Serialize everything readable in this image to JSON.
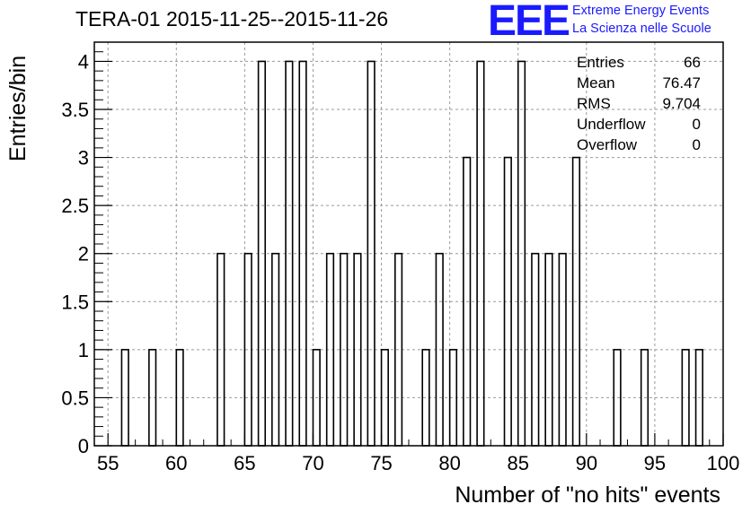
{
  "header": {
    "title": "TERA-01 2015-11-25--2015-11-26",
    "logo_text": "EEE",
    "logo_line1": "Extreme Energy Events",
    "logo_line2": "La Scienza nelle Scuole"
  },
  "stats": {
    "entries_label": "Entries",
    "entries_value": "66",
    "mean_label": "Mean",
    "mean_value": "76.47",
    "rms_label": "RMS",
    "rms_value": "9.704",
    "underflow_label": "Underflow",
    "underflow_value": "0",
    "overflow_label": "Overflow",
    "overflow_value": "0"
  },
  "colors": {
    "accent": "#1a1aff",
    "bar_stroke": "#000000",
    "grid": "#9a9a9a"
  },
  "chart_data": {
    "type": "bar",
    "title": "TERA-01 2015-11-25--2015-11-26",
    "xlabel": "Number of \"no hits\" events",
    "ylabel": "Entries/bin",
    "xlim": [
      54,
      100
    ],
    "ylim": [
      0,
      4.2
    ],
    "bin_width": 1,
    "grid": true,
    "x_ticks": [
      "55",
      "60",
      "65",
      "70",
      "75",
      "80",
      "85",
      "90",
      "95",
      "100"
    ],
    "y_ticks": [
      "0",
      "0.5",
      "1",
      "1.5",
      "2",
      "2.5",
      "3",
      "3.5",
      "4"
    ],
    "bins": [
      {
        "x": 56,
        "value": 1
      },
      {
        "x": 58,
        "value": 1
      },
      {
        "x": 60,
        "value": 1
      },
      {
        "x": 63,
        "value": 2
      },
      {
        "x": 65,
        "value": 2
      },
      {
        "x": 66,
        "value": 4
      },
      {
        "x": 67,
        "value": 2
      },
      {
        "x": 68,
        "value": 4
      },
      {
        "x": 69,
        "value": 4
      },
      {
        "x": 70,
        "value": 1
      },
      {
        "x": 71,
        "value": 2
      },
      {
        "x": 72,
        "value": 2
      },
      {
        "x": 73,
        "value": 2
      },
      {
        "x": 74,
        "value": 4
      },
      {
        "x": 75,
        "value": 1
      },
      {
        "x": 76,
        "value": 2
      },
      {
        "x": 78,
        "value": 1
      },
      {
        "x": 79,
        "value": 2
      },
      {
        "x": 80,
        "value": 1
      },
      {
        "x": 81,
        "value": 3
      },
      {
        "x": 82,
        "value": 4
      },
      {
        "x": 84,
        "value": 3
      },
      {
        "x": 85,
        "value": 4
      },
      {
        "x": 86,
        "value": 2
      },
      {
        "x": 87,
        "value": 2
      },
      {
        "x": 88,
        "value": 2
      },
      {
        "x": 89,
        "value": 3
      },
      {
        "x": 92,
        "value": 1
      },
      {
        "x": 94,
        "value": 1
      },
      {
        "x": 97,
        "value": 1
      },
      {
        "x": 98,
        "value": 1
      }
    ]
  }
}
